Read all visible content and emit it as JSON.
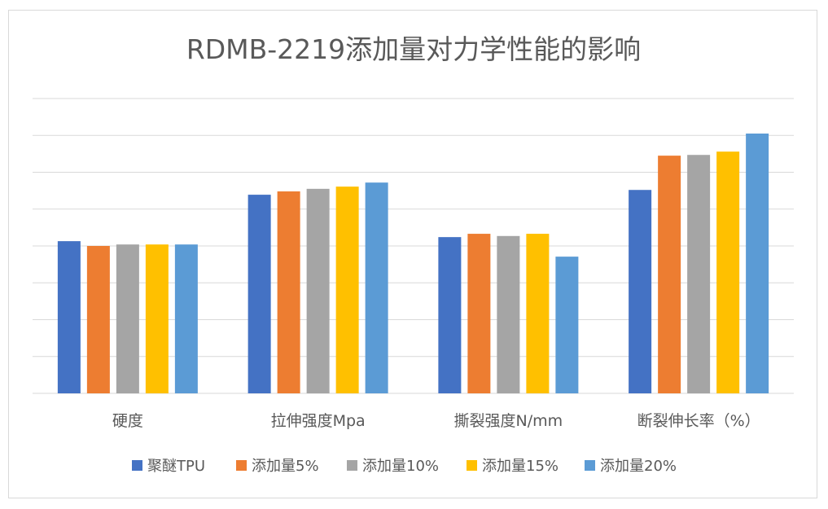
{
  "chart_data": {
    "type": "bar",
    "title": "RDMB-2219添加量对力学性能的影响",
    "xlabel": "",
    "ylabel": "",
    "y_axis_labels_shown": false,
    "ylim": [
      0,
      8
    ],
    "grid": true,
    "legend_position": "bottom",
    "categories": [
      "硬度",
      "拉伸强度Mpa",
      "撕裂强度N/mm",
      "断裂伸长率（%）"
    ],
    "series": [
      {
        "name": "聚醚TPU",
        "color": "#4472c4",
        "values": [
          4.13,
          5.39,
          4.24,
          5.52
        ]
      },
      {
        "name": "添加量5%",
        "color": "#ed7d31",
        "values": [
          4.0,
          5.48,
          4.33,
          6.45
        ]
      },
      {
        "name": "添加量10%",
        "color": "#a5a5a5",
        "values": [
          4.04,
          5.55,
          4.27,
          6.47
        ]
      },
      {
        "name": "添加量15%",
        "color": "#ffc000",
        "values": [
          4.04,
          5.61,
          4.33,
          6.56
        ]
      },
      {
        "name": "添加量20%",
        "color": "#5b9bd5",
        "values": [
          4.04,
          5.72,
          3.71,
          7.05
        ]
      }
    ]
  }
}
